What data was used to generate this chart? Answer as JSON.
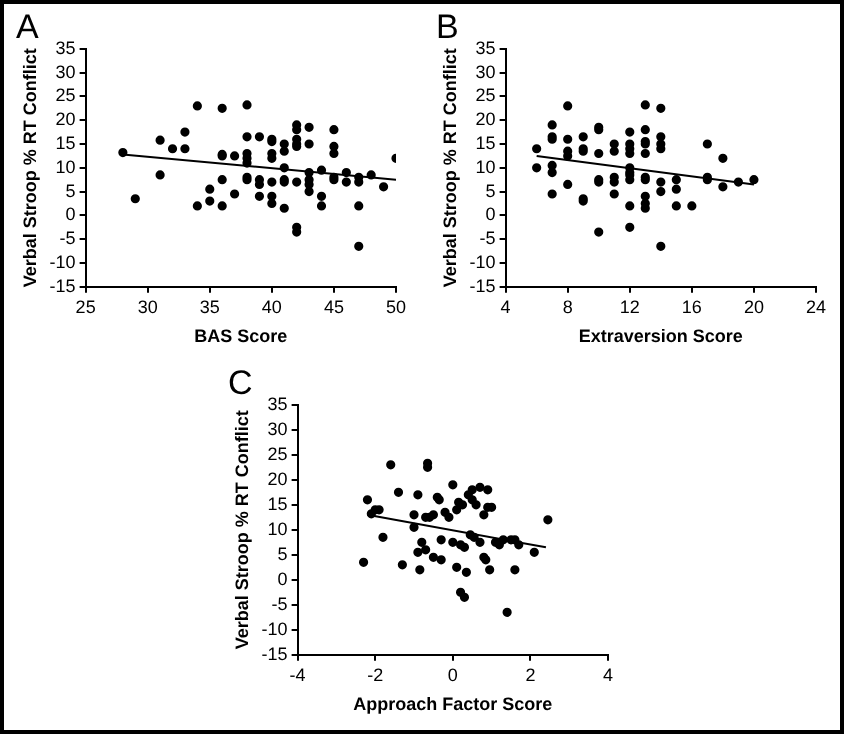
{
  "chart_data": [
    {
      "type": "scatter",
      "title": "A",
      "xlabel": "BAS Score",
      "ylabel": "Verbal Stroop % RT Conflict",
      "xlim": [
        25,
        50
      ],
      "xticks": [
        25,
        30,
        35,
        40,
        45,
        50
      ],
      "ylim": [
        -15,
        35
      ],
      "yticks": [
        -15,
        -10,
        -5,
        0,
        5,
        10,
        15,
        20,
        25,
        30,
        35
      ],
      "legend": false,
      "series": [
        {
          "type": "scatter",
          "marker": "circle",
          "color": "#000000",
          "x": [
            28,
            29,
            31,
            31,
            32,
            33,
            33,
            34,
            34,
            35,
            35,
            36,
            36,
            36,
            36,
            36,
            37,
            37,
            38,
            38,
            38,
            38,
            38,
            38,
            38,
            39,
            39,
            39,
            39,
            40,
            40,
            40,
            40,
            40,
            40,
            40,
            41,
            41,
            41,
            41,
            41,
            41,
            42,
            42,
            42,
            42,
            42,
            42,
            42,
            42,
            43,
            43,
            43,
            43,
            43,
            43,
            44,
            44,
            44,
            45,
            45,
            45,
            45,
            45,
            46,
            46,
            47,
            47,
            47,
            47,
            48,
            49,
            50
          ],
          "values": [
            13.2,
            3.5,
            15.8,
            8.5,
            14,
            17.5,
            14,
            23,
            2,
            5.5,
            3,
            22.5,
            12.8,
            12.5,
            7.5,
            2,
            12.5,
            4.5,
            23.2,
            16.5,
            13,
            12,
            11,
            8,
            7.5,
            16.5,
            7.5,
            6.5,
            4,
            16,
            15.5,
            13,
            12,
            7,
            4,
            2.5,
            15,
            13.5,
            10,
            7.5,
            7,
            1.5,
            19,
            18,
            16,
            15,
            14.5,
            7,
            -2.5,
            -3.5,
            18.5,
            15,
            9,
            7.5,
            6.5,
            5,
            9.5,
            4,
            2,
            18,
            14.5,
            13,
            8,
            7.5,
            9,
            7,
            8,
            7,
            2,
            -6.5,
            8.5,
            6,
            12
          ]
        },
        {
          "type": "line",
          "marker": "none",
          "color": "#000000",
          "x": [
            28,
            50
          ],
          "values": [
            12.8,
            7.5
          ]
        }
      ]
    },
    {
      "type": "scatter",
      "title": "B",
      "xlabel": "Extraversion Score",
      "ylabel": "Verbal Stroop % RT Conflict",
      "xlim": [
        4,
        24
      ],
      "xticks": [
        4,
        8,
        12,
        16,
        20,
        24
      ],
      "ylim": [
        -15,
        35
      ],
      "yticks": [
        -15,
        -10,
        -5,
        0,
        5,
        10,
        15,
        20,
        25,
        30,
        35
      ],
      "legend": false,
      "series": [
        {
          "type": "scatter",
          "marker": "circle",
          "color": "#000000",
          "x": [
            6,
            6,
            7,
            7,
            7,
            7,
            7,
            7,
            8,
            8,
            8,
            8,
            8,
            9,
            9,
            9,
            9,
            9,
            10,
            10,
            10,
            10,
            10,
            10,
            11,
            11,
            11,
            11,
            11,
            12,
            12,
            12,
            12,
            12,
            12,
            12,
            12,
            12,
            12,
            13,
            13,
            13,
            13,
            13,
            13,
            13,
            13,
            13,
            13,
            14,
            14,
            14,
            14,
            14,
            14,
            14,
            15,
            15,
            15,
            16,
            17,
            17,
            17,
            18,
            18,
            19,
            20
          ],
          "values": [
            14,
            10,
            19,
            16.5,
            16,
            10.5,
            9,
            4.5,
            23,
            16,
            13.5,
            12.5,
            6.5,
            16.5,
            14,
            13.5,
            3.5,
            3,
            18.5,
            18,
            13,
            7.5,
            7,
            -3.5,
            15,
            13.5,
            8,
            7,
            4.5,
            17.5,
            15,
            14,
            13,
            10,
            9,
            8.5,
            7.5,
            2,
            -2.5,
            23.2,
            18,
            15.5,
            15,
            13,
            8,
            7.5,
            4,
            2.5,
            1.5,
            22.5,
            16.5,
            15,
            14,
            7,
            5,
            -6.5,
            7.5,
            5.5,
            2,
            2,
            15,
            8,
            7.5,
            12,
            6,
            7,
            7.5
          ]
        },
        {
          "type": "line",
          "marker": "none",
          "color": "#000000",
          "x": [
            6,
            20
          ],
          "values": [
            12.5,
            6.5
          ]
        }
      ]
    },
    {
      "type": "scatter",
      "title": "C",
      "xlabel": "Approach Factor Score",
      "ylabel": "Verbal Stroop % RT Conflict",
      "xlim": [
        -4,
        4
      ],
      "xticks": [
        -4,
        -2,
        0,
        2,
        4
      ],
      "ylim": [
        -15,
        35
      ],
      "yticks": [
        -15,
        -10,
        -5,
        0,
        5,
        10,
        15,
        20,
        25,
        30,
        35
      ],
      "legend": false,
      "series": [
        {
          "type": "scatter",
          "marker": "circle",
          "color": "#000000",
          "x": [
            -2.3,
            -2.2,
            -2.1,
            -2,
            -1.9,
            -1.8,
            -1.6,
            -1.4,
            -1.3,
            -1,
            -1,
            -0.9,
            -0.9,
            -0.85,
            -0.8,
            -0.7,
            -0.7,
            -0.65,
            -0.65,
            -0.6,
            -0.5,
            -0.5,
            -0.4,
            -0.35,
            -0.3,
            -0.3,
            -0.2,
            -0.1,
            0,
            0,
            0.1,
            0.1,
            0.15,
            0.2,
            0.2,
            0.25,
            0.3,
            0.3,
            0.35,
            0.4,
            0.45,
            0.5,
            0.5,
            0.55,
            0.6,
            0.7,
            0.7,
            0.8,
            0.8,
            0.85,
            0.9,
            0.9,
            0.95,
            1,
            1.1,
            1.2,
            1.3,
            1.4,
            1.5,
            1.6,
            1.6,
            1.7,
            2.1,
            2.45
          ],
          "values": [
            3.5,
            16,
            13.2,
            14,
            14,
            8.5,
            23,
            17.5,
            3,
            10.5,
            13,
            17,
            5.5,
            2,
            7.5,
            6,
            12.5,
            22.5,
            23.3,
            12.5,
            13,
            4.5,
            16.5,
            16,
            8,
            4,
            13.5,
            12.5,
            19,
            7.5,
            2.5,
            14,
            15.5,
            -2.5,
            7,
            15,
            -3.5,
            6.5,
            1.5,
            17,
            9,
            18,
            16,
            8.5,
            15,
            18.5,
            7.5,
            13,
            4.5,
            4,
            18,
            14.5,
            2,
            14.5,
            7.5,
            7,
            8,
            -6.5,
            8,
            2,
            8,
            7,
            5.5,
            12
          ]
        },
        {
          "type": "line",
          "marker": "none",
          "color": "#000000",
          "x": [
            -2.2,
            2.4
          ],
          "values": [
            13,
            6.5
          ]
        }
      ]
    }
  ]
}
